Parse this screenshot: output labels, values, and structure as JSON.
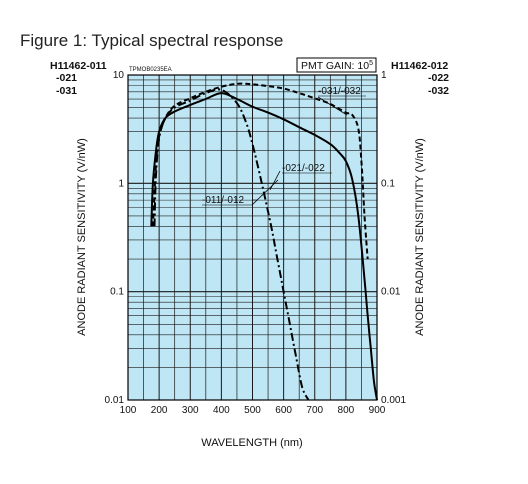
{
  "figure_title": "Figure 1: Typical spectral response",
  "image_code": "TPMOB0235EA",
  "left_header": [
    "H11462-011",
    "-021",
    "-031"
  ],
  "right_header": [
    "H11462-012",
    "-022",
    "-032"
  ],
  "gain_box": {
    "text": "PMT GAIN: 10",
    "exponent": "5"
  },
  "colors": {
    "plot_background": "#bfe6f4",
    "grid": "#1a1a1a",
    "curves": "#000000"
  },
  "chart_data": {
    "type": "line",
    "xlabel": "WAVELENGTH (nm)",
    "ylabel_left": "ANODE RADIANT SENSITIVITY (V/nW)",
    "ylabel_right": "ANODE RADIANT SENSITIVITY (V/nW)",
    "xlim": [
      100,
      900
    ],
    "ylim_left": [
      0.01,
      10
    ],
    "ylim_right": [
      0.001,
      1
    ],
    "yscale": "log",
    "grid": true,
    "x_ticks": [
      100,
      200,
      300,
      400,
      500,
      600,
      700,
      800,
      900
    ],
    "left_tick_values": [
      10,
      1,
      0.1,
      0.01
    ],
    "left_tick_labels": [
      "10",
      "1",
      "0.1",
      "0.01"
    ],
    "right_tick_values": [
      1,
      0.1,
      0.01,
      0.001
    ],
    "right_tick_labels": [
      "1",
      "0.1",
      "0.01",
      "0.001"
    ],
    "series": [
      {
        "name": "-011/-012",
        "style": "dash-dot",
        "x": [
          185,
          190,
          200,
          220,
          250,
          300,
          350,
          400,
          450,
          480,
          500,
          530,
          560,
          580,
          600,
          620,
          640,
          660,
          680
        ],
        "y": [
          0.4,
          1.2,
          2.6,
          4.0,
          5.0,
          5.8,
          6.8,
          7.3,
          5.5,
          3.6,
          2.3,
          1.0,
          0.4,
          0.2,
          0.1,
          0.05,
          0.025,
          0.013,
          0.01
        ]
      },
      {
        "name": "-021/-022",
        "style": "solid",
        "x": [
          175,
          180,
          190,
          200,
          220,
          250,
          300,
          350,
          400,
          450,
          500,
          550,
          600,
          650,
          700,
          750,
          780,
          800,
          820,
          840,
          860,
          870,
          880,
          890,
          900
        ],
        "y": [
          0.4,
          1.0,
          2.0,
          3.0,
          4.0,
          4.6,
          5.3,
          6.0,
          6.8,
          6.0,
          5.1,
          4.5,
          3.9,
          3.3,
          2.8,
          2.3,
          1.9,
          1.6,
          1.1,
          0.5,
          0.13,
          0.06,
          0.03,
          0.015,
          0.01
        ]
      },
      {
        "name": "-031/-032",
        "style": "dashed",
        "x": [
          180,
          190,
          200,
          220,
          250,
          300,
          350,
          400,
          450,
          500,
          550,
          600,
          650,
          700,
          750,
          800,
          820,
          840,
          850,
          860,
          870
        ],
        "y": [
          0.4,
          1.5,
          2.7,
          4.0,
          5.2,
          6.1,
          7.0,
          7.8,
          8.3,
          8.2,
          7.9,
          7.5,
          6.8,
          6.1,
          5.4,
          4.5,
          4.3,
          3.2,
          1.6,
          0.5,
          0.2
        ]
      }
    ]
  }
}
